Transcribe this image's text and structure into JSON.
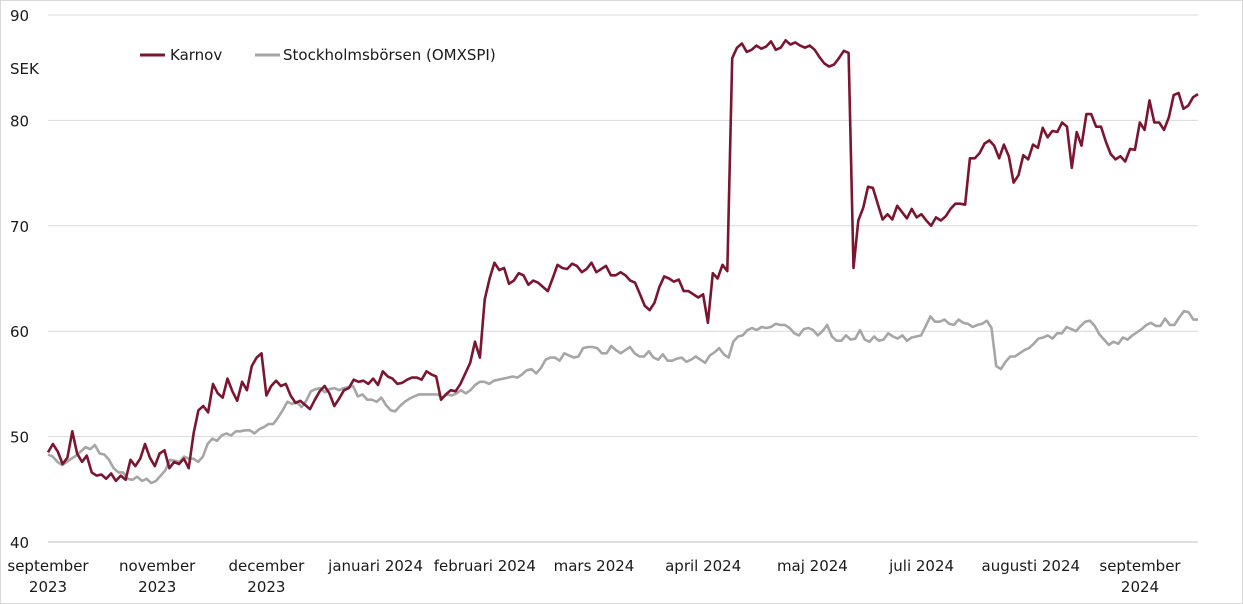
{
  "chart_data": {
    "type": "line",
    "title": "",
    "ylabel": "SEK",
    "ylim": [
      40,
      90
    ],
    "yticks": [
      "40",
      "50",
      "60",
      "70",
      "80",
      "90"
    ],
    "grid": true,
    "legend_position": "top-left",
    "x_labels": [
      [
        "september",
        "2023"
      ],
      [
        "november",
        "2023"
      ],
      [
        "december",
        "2023"
      ],
      [
        "januari 2024"
      ],
      [
        "februari 2024"
      ],
      [
        "mars 2024"
      ],
      [
        "april 2024"
      ],
      [
        "maj 2024"
      ],
      [
        "juli 2024"
      ],
      [
        "augusti 2024"
      ],
      [
        "september",
        "2024"
      ]
    ],
    "series": [
      {
        "name": "Karnov",
        "color": "#7b1530",
        "values": [
          48.5,
          49.3,
          48.6,
          47.4,
          48.0,
          50.5,
          48.4,
          47.6,
          48.2,
          46.6,
          46.3,
          46.4,
          46.0,
          46.5,
          45.8,
          46.3,
          45.9,
          47.8,
          47.2,
          47.9,
          49.3,
          48.0,
          47.2,
          48.4,
          48.7,
          47.0,
          47.6,
          47.4,
          47.9,
          47.0,
          50.3,
          52.5,
          52.9,
          52.3,
          55.0,
          54.1,
          53.7,
          55.5,
          54.3,
          53.4,
          55.2,
          54.4,
          56.7,
          57.5,
          57.9,
          53.9,
          54.8,
          55.3,
          54.8,
          55.0,
          53.9,
          53.2,
          53.4,
          53.0,
          52.6,
          53.5,
          54.3,
          54.8,
          54.1,
          52.9,
          53.6,
          54.4,
          54.6,
          55.4,
          55.2,
          55.3,
          55.0,
          55.5,
          54.9,
          56.2,
          55.7,
          55.5,
          55.0,
          55.1,
          55.4,
          55.6,
          55.6,
          55.4,
          56.2,
          55.9,
          55.7,
          53.5,
          54.0,
          54.4,
          54.3,
          55.0,
          56.0,
          57.0,
          59.0,
          57.5,
          63.0,
          65.0,
          66.5,
          65.8,
          66.0,
          64.5,
          64.8,
          65.5,
          65.3,
          64.4,
          64.8,
          64.6,
          64.2,
          63.8,
          65.0,
          66.3,
          66.0,
          65.9,
          66.4,
          66.2,
          65.6,
          65.9,
          66.5,
          65.6,
          65.9,
          66.2,
          65.3,
          65.3,
          65.6,
          65.3,
          64.8,
          64.6,
          63.5,
          62.4,
          62.0,
          62.7,
          64.2,
          65.2,
          65.0,
          64.7,
          64.9,
          63.8,
          63.8,
          63.5,
          63.2,
          63.5,
          60.8,
          65.5,
          65.0,
          66.3,
          65.7,
          85.9,
          86.9,
          87.3,
          86.5,
          86.7,
          87.1,
          86.8,
          87.0,
          87.5,
          86.7,
          86.9,
          87.6,
          87.2,
          87.4,
          87.1,
          86.9,
          87.1,
          86.7,
          86.0,
          85.4,
          85.1,
          85.3,
          85.9,
          86.6,
          86.4,
          66.0,
          70.5,
          71.7,
          73.7,
          73.6,
          72.1,
          70.6,
          71.1,
          70.6,
          71.9,
          71.3,
          70.7,
          71.6,
          70.8,
          71.1,
          70.5,
          70.0,
          70.8,
          70.5,
          70.9,
          71.6,
          72.1,
          72.1,
          72.0,
          76.4,
          76.4,
          76.9,
          77.8,
          78.1,
          77.6,
          76.4,
          77.7,
          76.6,
          74.1,
          74.8,
          76.7,
          76.3,
          77.7,
          77.4,
          79.3,
          78.4,
          79.0,
          78.9,
          79.8,
          79.4,
          75.5,
          78.9,
          77.6,
          80.6,
          80.6,
          79.4,
          79.4,
          78.0,
          76.8,
          76.3,
          76.6,
          76.1,
          77.3,
          77.2,
          79.8,
          79.1,
          81.9,
          79.8,
          79.8,
          79.1,
          80.3,
          82.4,
          82.6,
          81.1,
          81.4,
          82.2,
          82.5
        ]
      },
      {
        "name": "Stockholmsbörsen (OMXSPI)",
        "color": "#a6a6a6",
        "values": [
          48.3,
          48.1,
          47.6,
          47.3,
          47.6,
          47.9,
          48.2,
          48.6,
          49.0,
          48.8,
          49.2,
          48.4,
          48.3,
          47.8,
          47.0,
          46.6,
          46.6,
          46.0,
          45.9,
          46.2,
          45.8,
          46.0,
          45.6,
          45.8,
          46.3,
          46.8,
          47.8,
          47.7,
          47.6,
          48.1,
          47.9,
          47.9,
          47.6,
          48.1,
          49.3,
          49.8,
          49.6,
          50.1,
          50.3,
          50.1,
          50.5,
          50.5,
          50.6,
          50.6,
          50.3,
          50.7,
          50.9,
          51.2,
          51.2,
          51.8,
          52.5,
          53.3,
          53.1,
          53.3,
          52.8,
          53.4,
          54.3,
          54.5,
          54.6,
          54.2,
          54.5,
          54.6,
          54.4,
          54.6,
          54.7,
          54.8,
          53.8,
          54.0,
          53.5,
          53.5,
          53.3,
          53.7,
          53.0,
          52.5,
          52.4,
          52.9,
          53.3,
          53.6,
          53.8,
          54.0,
          54.0,
          54.0,
          54.0,
          54.0,
          53.7,
          54.0,
          53.9,
          54.1,
          54.4,
          54.1,
          54.4,
          54.9,
          55.2,
          55.2,
          55.0,
          55.3,
          55.4,
          55.5,
          55.6,
          55.7,
          55.6,
          55.9,
          56.3,
          56.4,
          56.0,
          56.5,
          57.3,
          57.5,
          57.5,
          57.2,
          57.9,
          57.7,
          57.5,
          57.6,
          58.4,
          58.5,
          58.5,
          58.4,
          57.9,
          57.9,
          58.6,
          58.2,
          57.9,
          58.2,
          58.5,
          57.9,
          57.6,
          57.6,
          58.1,
          57.5,
          57.3,
          57.8,
          57.2,
          57.2,
          57.4,
          57.5,
          57.1,
          57.3,
          57.6,
          57.3,
          57.0,
          57.7,
          58.0,
          58.4,
          57.8,
          57.5,
          59.0,
          59.5,
          59.6,
          60.1,
          60.3,
          60.1,
          60.4,
          60.3,
          60.4,
          60.7,
          60.6,
          60.6,
          60.3,
          59.8,
          59.6,
          60.2,
          60.3,
          60.1,
          59.6,
          60.0,
          60.6,
          59.5,
          59.1,
          59.1,
          59.6,
          59.2,
          59.3,
          60.1,
          59.2,
          59.0,
          59.5,
          59.1,
          59.2,
          59.8,
          59.5,
          59.3,
          59.6,
          59.1,
          59.4,
          59.5,
          59.6,
          60.5,
          61.4,
          60.9,
          60.9,
          61.1,
          60.7,
          60.6,
          61.1,
          60.8,
          60.7,
          60.4,
          60.6,
          60.7,
          61.0,
          60.3,
          56.7,
          56.4,
          57.1,
          57.6,
          57.6,
          57.9,
          58.2,
          58.4,
          58.8,
          59.3,
          59.4,
          59.6,
          59.3,
          59.8,
          59.8,
          60.4,
          60.2,
          60.0,
          60.5,
          60.9,
          61.0,
          60.5,
          59.7,
          59.2,
          58.7,
          59.0,
          58.8,
          59.4,
          59.2,
          59.6,
          59.9,
          60.2,
          60.6,
          60.8,
          60.5,
          60.5,
          61.2,
          60.6,
          60.6,
          61.3,
          61.9,
          61.8,
          61.1,
          61.1
        ]
      }
    ]
  }
}
